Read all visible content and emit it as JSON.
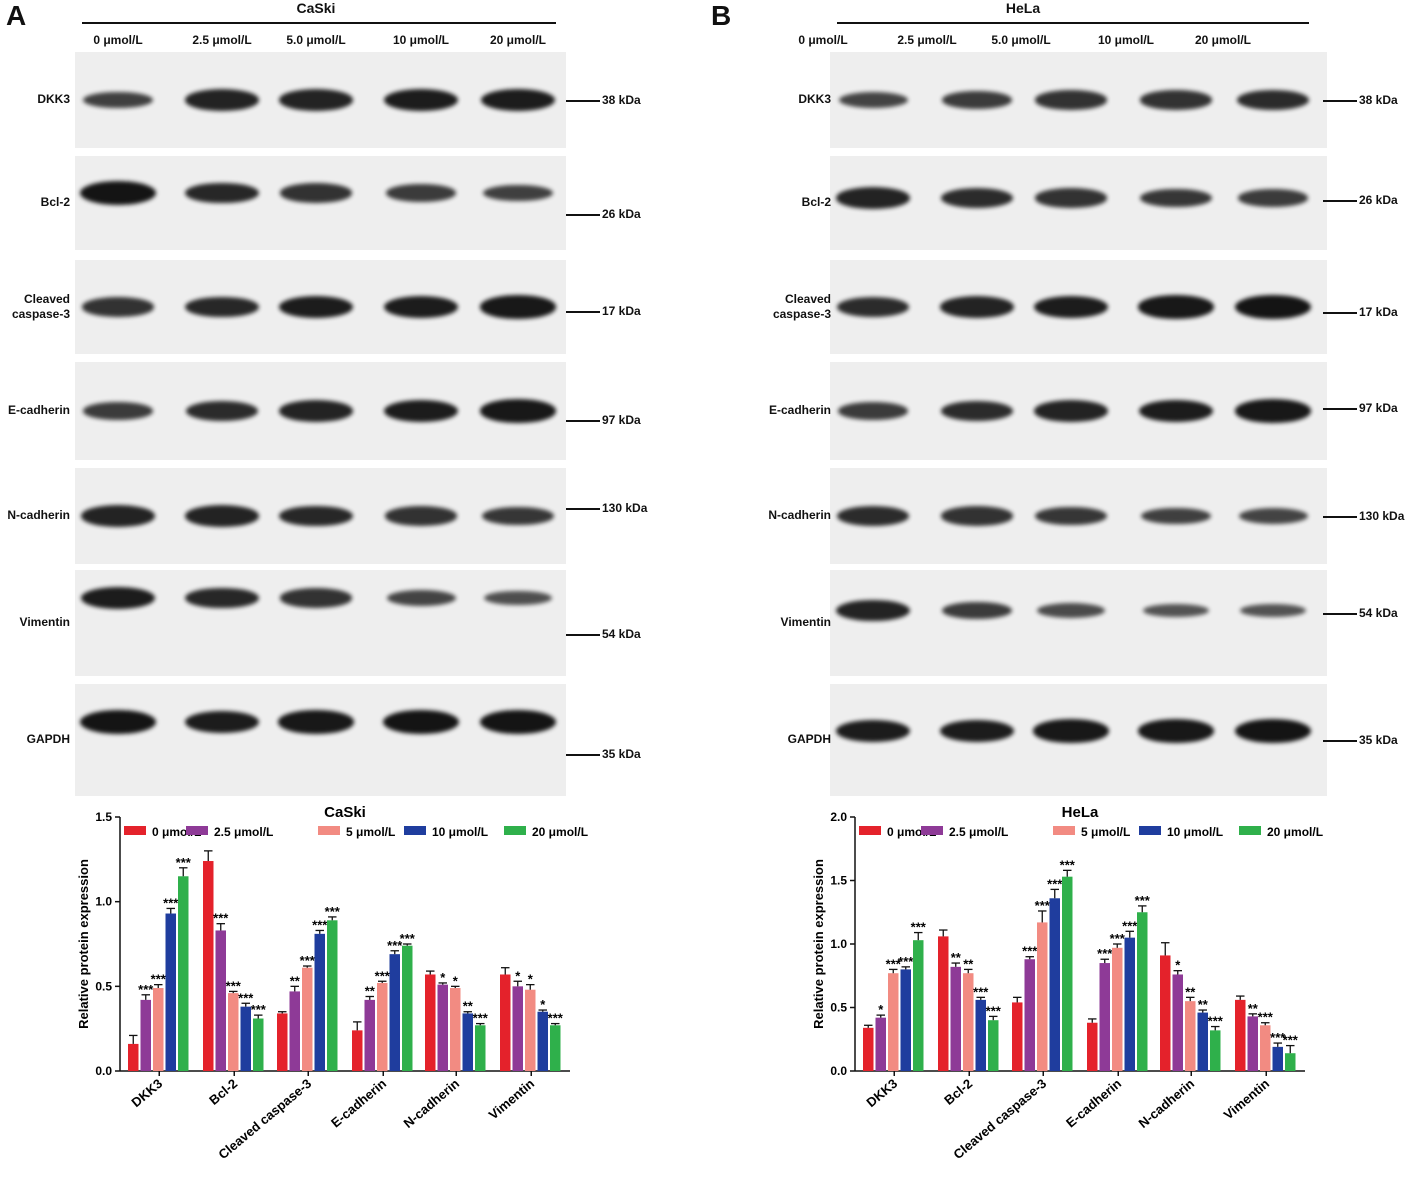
{
  "concentrations": [
    "0 μmol/L",
    "2.5 μmol/L",
    "5.0 μmol/L",
    "10 μmol/L",
    "20 μmol/L"
  ],
  "proteins": [
    {
      "name": "DKK3",
      "kda": "38 kDa"
    },
    {
      "name": "Bcl-2",
      "kda": "26 kDa"
    },
    {
      "name": "Cleaved\ncaspase-3",
      "kda": "17 kDa"
    },
    {
      "name": "E-cadherin",
      "kda": "97 kDa"
    },
    {
      "name": "N-cadherin",
      "kda": "130 kDa"
    },
    {
      "name": "Vimentin",
      "kda": "54 kDa"
    },
    {
      "name": "GAPDH",
      "kda": "35 kDa"
    }
  ],
  "panels": [
    {
      "label": "A",
      "cell_line": "CaSki"
    },
    {
      "label": "B",
      "cell_line": "HeLa"
    }
  ],
  "legend": [
    "0 μmol/L",
    "2.5 μmol/L",
    "5 μmol/L",
    "10 μmol/L",
    "20 μmol/L"
  ],
  "colors": {
    "series": [
      "#e4222b",
      "#8e3a97",
      "#f28b82",
      "#1f3d9e",
      "#2fb04b"
    ],
    "band": "#141414",
    "membrane": "#eeeeee"
  },
  "chart_data": [
    {
      "type": "bar",
      "title": "CaSki",
      "ylabel": "Relative protein expression",
      "ylim": [
        0,
        1.5
      ],
      "yticks": [
        "0.0",
        "0.5",
        "1.0",
        "1.5"
      ],
      "categories": [
        "DKK3",
        "Bcl-2",
        "Cleaved caspase-3",
        "E-cadherin",
        "N-cadherin",
        "Vimentin"
      ],
      "series": [
        {
          "name": "0 μmol/L",
          "values": [
            0.16,
            1.24,
            0.34,
            0.24,
            0.57,
            0.57
          ],
          "errors": [
            0.05,
            0.06,
            0.01,
            0.05,
            0.02,
            0.04
          ],
          "sig": [
            "",
            "",
            "",
            "",
            "",
            ""
          ]
        },
        {
          "name": "2.5 μmol/L",
          "values": [
            0.42,
            0.83,
            0.47,
            0.42,
            0.51,
            0.5
          ],
          "errors": [
            0.03,
            0.04,
            0.03,
            0.02,
            0.01,
            0.03
          ],
          "sig": [
            "***",
            "***",
            "**",
            "**",
            "*",
            "*"
          ]
        },
        {
          "name": "5 μmol/L",
          "values": [
            0.49,
            0.46,
            0.61,
            0.52,
            0.49,
            0.48
          ],
          "errors": [
            0.02,
            0.01,
            0.01,
            0.01,
            0.01,
            0.03
          ],
          "sig": [
            "***",
            "***",
            "***",
            "***",
            "*",
            "*"
          ]
        },
        {
          "name": "10 μmol/L",
          "values": [
            0.93,
            0.38,
            0.81,
            0.69,
            0.34,
            0.35
          ],
          "errors": [
            0.03,
            0.02,
            0.02,
            0.02,
            0.01,
            0.01
          ],
          "sig": [
            "***",
            "***",
            "***",
            "***",
            "**",
            "*"
          ]
        },
        {
          "name": "20 μmol/L",
          "values": [
            1.15,
            0.31,
            0.89,
            0.74,
            0.27,
            0.27
          ],
          "errors": [
            0.05,
            0.02,
            0.02,
            0.01,
            0.01,
            0.01
          ],
          "sig": [
            "***",
            "***",
            "***",
            "***",
            "***",
            "***"
          ]
        }
      ]
    },
    {
      "type": "bar",
      "title": "HeLa",
      "ylabel": "Relative protein expression",
      "ylim": [
        0,
        2.0
      ],
      "yticks": [
        "0.0",
        "0.5",
        "1.0",
        "1.5",
        "2.0"
      ],
      "categories": [
        "DKK3",
        "Bcl-2",
        "Cleaved caspase-3",
        "E-cadherin",
        "N-cadherin",
        "Vimentin"
      ],
      "series": [
        {
          "name": "0 μmol/L",
          "values": [
            0.34,
            1.06,
            0.54,
            0.38,
            0.91,
            0.56
          ],
          "errors": [
            0.02,
            0.05,
            0.04,
            0.03,
            0.1,
            0.03
          ],
          "sig": [
            "",
            "",
            "",
            "",
            "",
            ""
          ]
        },
        {
          "name": "2.5 μmol/L",
          "values": [
            0.42,
            0.82,
            0.88,
            0.85,
            0.76,
            0.43
          ],
          "errors": [
            0.02,
            0.03,
            0.02,
            0.03,
            0.03,
            0.02
          ],
          "sig": [
            "*",
            "**",
            "***",
            "***",
            "*",
            "**"
          ]
        },
        {
          "name": "5 μmol/L",
          "values": [
            0.77,
            0.77,
            1.17,
            0.97,
            0.55,
            0.36
          ],
          "errors": [
            0.03,
            0.03,
            0.09,
            0.03,
            0.03,
            0.02
          ],
          "sig": [
            "***",
            "**",
            "***",
            "***",
            "**",
            "***"
          ]
        },
        {
          "name": "10 μmol/L",
          "values": [
            0.8,
            0.56,
            1.36,
            1.05,
            0.46,
            0.19
          ],
          "errors": [
            0.02,
            0.02,
            0.07,
            0.05,
            0.02,
            0.03
          ],
          "sig": [
            "***",
            "***",
            "***",
            "***",
            "**",
            "***"
          ]
        },
        {
          "name": "20 μmol/L",
          "values": [
            1.03,
            0.4,
            1.53,
            1.25,
            0.32,
            0.14
          ],
          "errors": [
            0.06,
            0.03,
            0.05,
            0.05,
            0.03,
            0.06
          ],
          "sig": [
            "***",
            "***",
            "***",
            "***",
            "***",
            "***"
          ]
        }
      ]
    }
  ]
}
